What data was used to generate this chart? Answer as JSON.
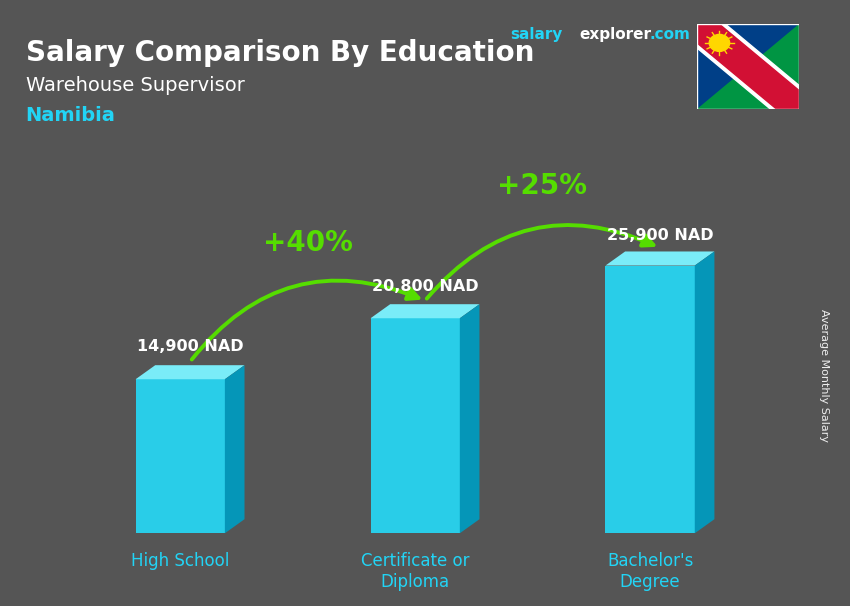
{
  "title_line1": "Salary Comparison By Education",
  "subtitle": "Warehouse Supervisor",
  "country": "Namibia",
  "site_salary": "salary",
  "site_explorer": "explorer",
  "site_dot": ".",
  "site_com": "com",
  "ylabel": "Average Monthly Salary",
  "categories": [
    "High School",
    "Certificate or\nDiploma",
    "Bachelor's\nDegree"
  ],
  "values": [
    14900,
    20800,
    25900
  ],
  "value_labels": [
    "14,900 NAD",
    "20,800 NAD",
    "25,900 NAD"
  ],
  "pct_labels": [
    "+40%",
    "+25%"
  ],
  "bar_face_color": "#29cde8",
  "bar_top_color": "#7aecf8",
  "bar_side_color": "#0596b8",
  "arrow_color": "#55dd00",
  "title_color": "#ffffff",
  "subtitle_color": "#ffffff",
  "country_color": "#22d4f5",
  "value_label_color": "#ffffff",
  "pct_color": "#55dd00",
  "xlabel_color": "#22d4f5",
  "site_color_salary": "#22d4f5",
  "site_color_explorer": "#ffffff",
  "site_color_com": "#22d4f5",
  "bg_color": "#555555",
  "ylim": [
    0,
    34000
  ],
  "bar_width": 0.38,
  "bar_positions": [
    0.18,
    0.5,
    0.82
  ]
}
